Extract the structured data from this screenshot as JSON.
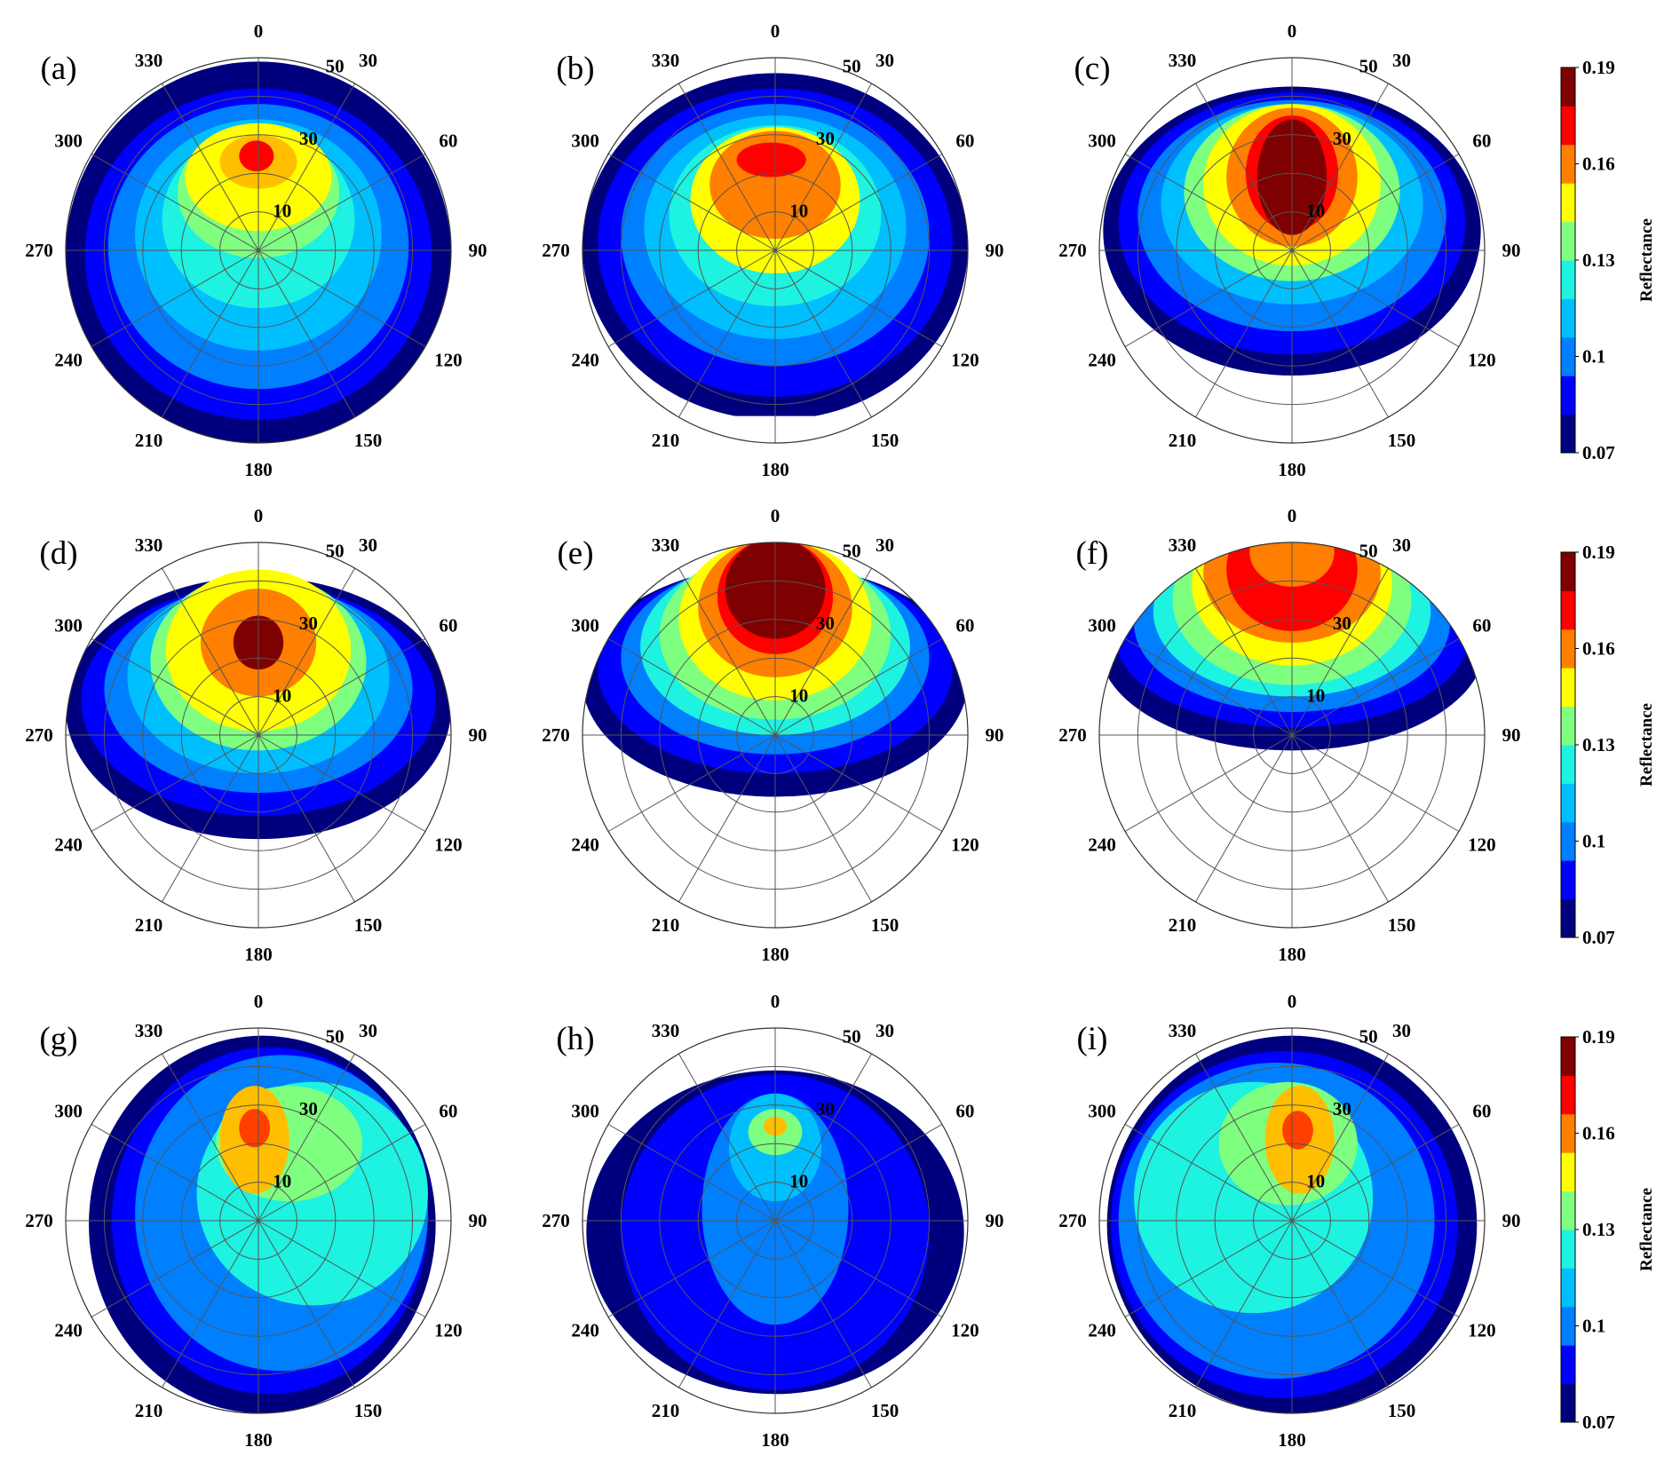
{
  "chart_data": {
    "type": "heatmap",
    "projection": "polar",
    "layout": "3x3 grid",
    "angle_ticks": [
      "0",
      "30",
      "60",
      "90",
      "120",
      "150",
      "180",
      "210",
      "240",
      "270",
      "300",
      "330"
    ],
    "radial_ticks": [
      "10",
      "30",
      "50"
    ],
    "angle_direction": "clockwise from top",
    "colorbar": {
      "label": "Reflectance",
      "ticks": [
        "0.19",
        "0.16",
        "0.13",
        "0.1",
        "0.07"
      ],
      "min": 0.07,
      "max": 0.19,
      "colormap": "jet",
      "levels": [
        "#00007f",
        "#0000ff",
        "#007fff",
        "#00bfff",
        "#1ef2e0",
        "#7fff7f",
        "#ffff00",
        "#ff7f00",
        "#ff0000",
        "#7f0000"
      ]
    },
    "panels": [
      {
        "label": "(a)",
        "peak_reflectance": 0.18,
        "peak_position": {
          "angle_deg": 0,
          "zenith": 30
        },
        "coverage": "full disk",
        "bands": [
          {
            "color": "#00007f",
            "cx": 0.0,
            "cy": 0.02,
            "rx": 1.0,
            "ry": 1.0
          },
          {
            "color": "#0000ff",
            "cx": 0.0,
            "cy": 0.02,
            "rx": 0.9,
            "ry": 0.86
          },
          {
            "color": "#007fff",
            "cx": 0.0,
            "cy": -0.02,
            "rx": 0.78,
            "ry": 0.74
          },
          {
            "color": "#00bfff",
            "cx": 0.0,
            "cy": -0.08,
            "rx": 0.64,
            "ry": 0.6
          },
          {
            "color": "#1ef2e0",
            "cx": 0.0,
            "cy": -0.16,
            "rx": 0.5,
            "ry": 0.46
          },
          {
            "color": "#7fff7f",
            "cx": 0.0,
            "cy": -0.3,
            "rx": 0.42,
            "ry": 0.34
          },
          {
            "color": "#ffff00",
            "cx": 0.0,
            "cy": -0.38,
            "rx": 0.38,
            "ry": 0.28
          },
          {
            "color": "#ffbf00",
            "cx": 0.0,
            "cy": -0.46,
            "rx": 0.2,
            "ry": 0.14
          },
          {
            "color": "#ff0000",
            "cx": -0.01,
            "cy": -0.49,
            "rx": 0.09,
            "ry": 0.08
          }
        ]
      },
      {
        "label": "(b)",
        "peak_reflectance": 0.18,
        "peak_position": {
          "angle_deg": 0,
          "zenith": 30
        },
        "coverage": "disk, cut at 180",
        "bands": [
          {
            "color": "#00007f",
            "cx": 0.0,
            "cy": -0.02,
            "rx": 1.0,
            "ry": 0.9
          },
          {
            "color": "#0000ff",
            "cx": 0.0,
            "cy": -0.04,
            "rx": 0.92,
            "ry": 0.8
          },
          {
            "color": "#007fff",
            "cx": 0.0,
            "cy": -0.08,
            "rx": 0.8,
            "ry": 0.68
          },
          {
            "color": "#00bfff",
            "cx": 0.0,
            "cy": -0.12,
            "rx": 0.68,
            "ry": 0.58
          },
          {
            "color": "#1ef2e0",
            "cx": 0.0,
            "cy": -0.18,
            "rx": 0.55,
            "ry": 0.47
          },
          {
            "color": "#ffff00",
            "cx": 0.0,
            "cy": -0.26,
            "rx": 0.44,
            "ry": 0.38
          },
          {
            "color": "#ff7f00",
            "cx": 0.0,
            "cy": -0.34,
            "rx": 0.34,
            "ry": 0.28
          },
          {
            "color": "#ff0000",
            "cx": -0.02,
            "cy": -0.47,
            "rx": 0.18,
            "ry": 0.09
          }
        ]
      },
      {
        "label": "(c)",
        "peak_reflectance": 0.19,
        "peak_position": {
          "angle_deg": 0,
          "zenith": 30
        },
        "coverage": "partial, to 140 deg",
        "bands": [
          {
            "color": "#00007f",
            "cx": 0.0,
            "cy": -0.1,
            "rx": 0.98,
            "ry": 0.75
          },
          {
            "color": "#0000ff",
            "cx": 0.0,
            "cy": -0.14,
            "rx": 0.9,
            "ry": 0.68
          },
          {
            "color": "#007fff",
            "cx": 0.0,
            "cy": -0.18,
            "rx": 0.8,
            "ry": 0.6
          },
          {
            "color": "#00bfff",
            "cx": 0.0,
            "cy": -0.24,
            "rx": 0.68,
            "ry": 0.52
          },
          {
            "color": "#7fff7f",
            "cx": 0.0,
            "cy": -0.3,
            "rx": 0.56,
            "ry": 0.46
          },
          {
            "color": "#ffff00",
            "cx": 0.0,
            "cy": -0.34,
            "rx": 0.46,
            "ry": 0.42
          },
          {
            "color": "#ff7f00",
            "cx": 0.0,
            "cy": -0.38,
            "rx": 0.34,
            "ry": 0.36
          },
          {
            "color": "#ff0000",
            "cx": 0.0,
            "cy": -0.4,
            "rx": 0.24,
            "ry": 0.3
          },
          {
            "color": "#7f0000",
            "cx": 0.0,
            "cy": -0.38,
            "rx": 0.18,
            "ry": 0.3
          }
        ]
      },
      {
        "label": "(d)",
        "peak_reflectance": 0.19,
        "peak_position": {
          "angle_deg": 0,
          "zenith": 30
        },
        "coverage": "partial, to 120 deg",
        "bands": [
          {
            "color": "#00007f",
            "cx": 0.0,
            "cy": -0.14,
            "rx": 1.0,
            "ry": 0.68
          },
          {
            "color": "#0000ff",
            "cx": 0.0,
            "cy": -0.18,
            "rx": 0.92,
            "ry": 0.6
          },
          {
            "color": "#007fff",
            "cx": 0.0,
            "cy": -0.24,
            "rx": 0.8,
            "ry": 0.54
          },
          {
            "color": "#00bfff",
            "cx": 0.0,
            "cy": -0.3,
            "rx": 0.68,
            "ry": 0.5
          },
          {
            "color": "#7fff7f",
            "cx": 0.0,
            "cy": -0.38,
            "rx": 0.56,
            "ry": 0.46
          },
          {
            "color": "#ffff00",
            "cx": 0.0,
            "cy": -0.44,
            "rx": 0.48,
            "ry": 0.42
          },
          {
            "color": "#ff7f00",
            "cx": 0.0,
            "cy": -0.48,
            "rx": 0.3,
            "ry": 0.28
          },
          {
            "color": "#7f0000",
            "cx": 0.0,
            "cy": -0.48,
            "rx": 0.13,
            "ry": 0.14
          }
        ]
      },
      {
        "label": "(e)",
        "peak_reflectance": 0.19,
        "peak_position": {
          "angle_deg": 0,
          "zenith": 45
        },
        "coverage": "partial, to 100 deg",
        "bands": [
          {
            "color": "#00007f",
            "cx": 0.0,
            "cy": -0.28,
            "rx": 1.0,
            "ry": 0.6
          },
          {
            "color": "#0000ff",
            "cx": 0.0,
            "cy": -0.34,
            "rx": 0.92,
            "ry": 0.54
          },
          {
            "color": "#007fff",
            "cx": 0.0,
            "cy": -0.4,
            "rx": 0.8,
            "ry": 0.5
          },
          {
            "color": "#1ef2e0",
            "cx": 0.0,
            "cy": -0.46,
            "rx": 0.7,
            "ry": 0.46
          },
          {
            "color": "#7fff7f",
            "cx": 0.0,
            "cy": -0.52,
            "rx": 0.6,
            "ry": 0.44
          },
          {
            "color": "#ffff00",
            "cx": 0.0,
            "cy": -0.6,
            "rx": 0.5,
            "ry": 0.42
          },
          {
            "color": "#ff7f00",
            "cx": 0.0,
            "cy": -0.66,
            "rx": 0.4,
            "ry": 0.36
          },
          {
            "color": "#ff0000",
            "cx": 0.0,
            "cy": -0.72,
            "rx": 0.3,
            "ry": 0.3
          },
          {
            "color": "#7f0000",
            "cx": 0.0,
            "cy": -0.76,
            "rx": 0.26,
            "ry": 0.26
          }
        ]
      },
      {
        "label": "(f)",
        "peak_reflectance": 0.19,
        "peak_position": {
          "angle_deg": 0,
          "zenith": 60
        },
        "coverage": "partial, to 90 deg",
        "bands": [
          {
            "color": "#00007f",
            "cx": 0.0,
            "cy": -0.46,
            "rx": 1.0,
            "ry": 0.54
          },
          {
            "color": "#0000ff",
            "cx": 0.0,
            "cy": -0.52,
            "rx": 0.92,
            "ry": 0.48
          },
          {
            "color": "#007fff",
            "cx": 0.0,
            "cy": -0.58,
            "rx": 0.82,
            "ry": 0.46
          },
          {
            "color": "#1ef2e0",
            "cx": 0.0,
            "cy": -0.64,
            "rx": 0.72,
            "ry": 0.44
          },
          {
            "color": "#7fff7f",
            "cx": 0.0,
            "cy": -0.7,
            "rx": 0.62,
            "ry": 0.44
          },
          {
            "color": "#ffff00",
            "cx": 0.0,
            "cy": -0.78,
            "rx": 0.52,
            "ry": 0.42
          },
          {
            "color": "#ff7f00",
            "cx": 0.0,
            "cy": -0.84,
            "rx": 0.46,
            "ry": 0.36
          },
          {
            "color": "#ff0000",
            "cx": 0.0,
            "cy": -0.86,
            "rx": 0.34,
            "ry": 0.32
          },
          {
            "color": "#ff7f00",
            "cx": 0.0,
            "cy": -0.95,
            "rx": 0.22,
            "ry": 0.18
          }
        ]
      },
      {
        "label": "(g)",
        "peak_reflectance": 0.17,
        "peak_position": {
          "angle_deg": 350,
          "zenith": 30
        },
        "coverage": "full disk, cut 270-330",
        "bands": [
          {
            "color": "#00007f",
            "cx": 0.02,
            "cy": 0.02,
            "rx": 0.9,
            "ry": 0.98
          },
          {
            "color": "#0000ff",
            "cx": 0.06,
            "cy": 0.0,
            "rx": 0.82,
            "ry": 0.9
          },
          {
            "color": "#007fff",
            "cx": 0.12,
            "cy": -0.04,
            "rx": 0.76,
            "ry": 0.82
          },
          {
            "color": "#1ef2e0",
            "cx": 0.28,
            "cy": -0.14,
            "rx": 0.6,
            "ry": 0.58
          },
          {
            "color": "#7fff7f",
            "cx": 0.16,
            "cy": -0.4,
            "rx": 0.38,
            "ry": 0.3
          },
          {
            "color": "#ffbf00",
            "cx": -0.02,
            "cy": -0.42,
            "rx": 0.18,
            "ry": 0.28
          },
          {
            "color": "#ff3f00",
            "cx": -0.02,
            "cy": -0.48,
            "rx": 0.08,
            "ry": 0.1
          }
        ]
      },
      {
        "label": "(h)",
        "peak_reflectance": 0.16,
        "peak_position": {
          "angle_deg": 0,
          "zenith": 30
        },
        "coverage": "full disk",
        "bands": [
          {
            "color": "#00007f",
            "cx": 0.0,
            "cy": 0.06,
            "rx": 0.98,
            "ry": 0.84
          },
          {
            "color": "#0000ff",
            "cx": 0.0,
            "cy": 0.06,
            "rx": 0.8,
            "ry": 0.82
          },
          {
            "color": "#007fff",
            "cx": 0.0,
            "cy": -0.06,
            "rx": 0.38,
            "ry": 0.6
          },
          {
            "color": "#00bfff",
            "cx": 0.0,
            "cy": -0.38,
            "rx": 0.24,
            "ry": 0.28
          },
          {
            "color": "#7fff7f",
            "cx": 0.0,
            "cy": -0.46,
            "rx": 0.14,
            "ry": 0.12
          },
          {
            "color": "#ffbf00",
            "cx": 0.0,
            "cy": -0.49,
            "rx": 0.06,
            "ry": 0.05
          }
        ]
      },
      {
        "label": "(i)",
        "peak_reflectance": 0.17,
        "peak_position": {
          "angle_deg": 10,
          "zenith": 30
        },
        "coverage": "full disk, cut 30-90",
        "bands": [
          {
            "color": "#00007f",
            "cx": 0.0,
            "cy": 0.02,
            "rx": 0.96,
            "ry": 0.98
          },
          {
            "color": "#0000ff",
            "cx": -0.04,
            "cy": 0.02,
            "rx": 0.9,
            "ry": 0.9
          },
          {
            "color": "#007fff",
            "cx": -0.08,
            "cy": 0.0,
            "rx": 0.82,
            "ry": 0.82
          },
          {
            "color": "#1ef2e0",
            "cx": -0.2,
            "cy": -0.12,
            "rx": 0.62,
            "ry": 0.6
          },
          {
            "color": "#7fff7f",
            "cx": -0.02,
            "cy": -0.4,
            "rx": 0.36,
            "ry": 0.32
          },
          {
            "color": "#ffbf00",
            "cx": 0.04,
            "cy": -0.42,
            "rx": 0.18,
            "ry": 0.28
          },
          {
            "color": "#ff3f00",
            "cx": 0.03,
            "cy": -0.47,
            "rx": 0.08,
            "ry": 0.1
          }
        ]
      }
    ]
  }
}
